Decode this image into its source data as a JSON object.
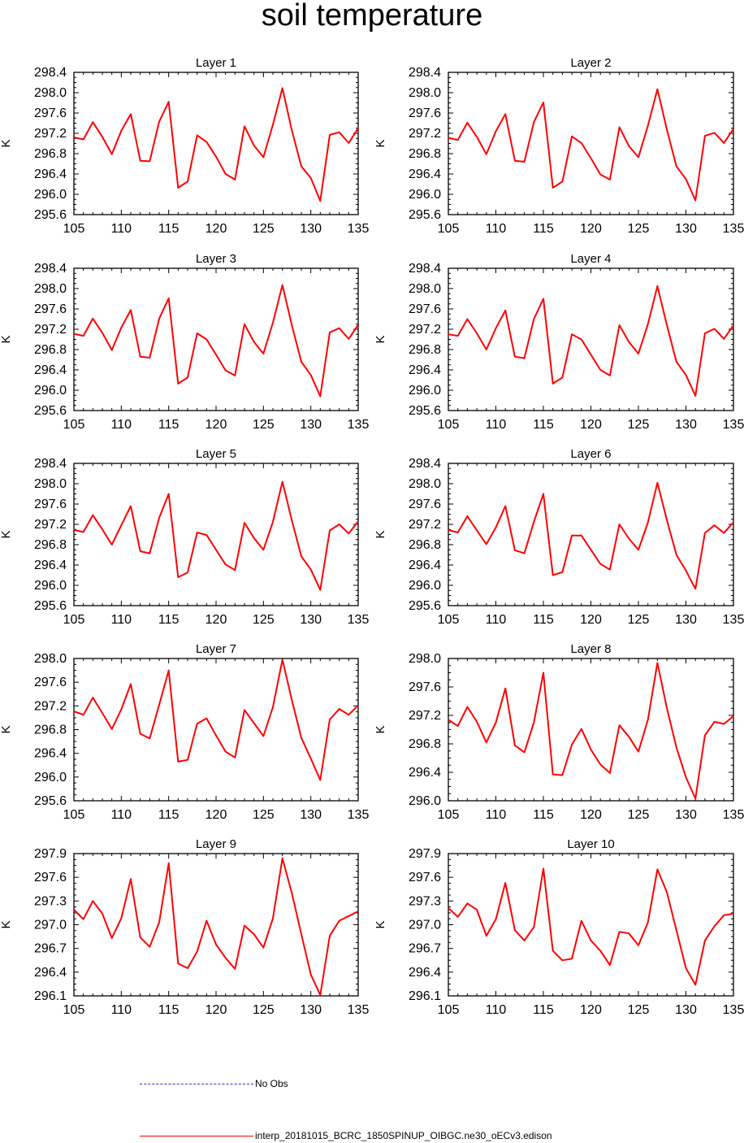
{
  "title": "soil temperature",
  "colors": {
    "model": "#ff0000",
    "obs": "#2a2ad8",
    "axis": "#000000"
  },
  "legend": [
    {
      "label": "No Obs",
      "color": "#2a2ad8",
      "style": "dashed"
    },
    {
      "label": "interp_20181015_BCRC_1850SPINUP_OIBGC.ne30_oECv3.edison",
      "color": "#ff0000",
      "style": "solid"
    }
  ],
  "chart_data": [
    {
      "type": "line",
      "title": "Layer 1",
      "ylabel": "K",
      "xlim": [
        105,
        135
      ],
      "ylim": [
        295.6,
        298.4
      ],
      "xticks": [
        105,
        110,
        115,
        120,
        125,
        130,
        135
      ],
      "yticks": [
        "295.6",
        "296.0",
        "296.4",
        "296.8",
        "297.2",
        "297.6",
        "298.0",
        "298.4"
      ],
      "x": [
        105,
        106,
        107,
        108,
        109,
        110,
        111,
        112,
        113,
        114,
        115,
        116,
        117,
        118,
        119,
        120,
        121,
        122,
        123,
        124,
        125,
        126,
        127,
        128,
        129,
        130,
        131,
        132,
        133,
        134,
        135
      ],
      "series": [
        {
          "values": [
            297.12,
            297.08,
            297.42,
            297.13,
            296.79,
            297.25,
            297.58,
            296.66,
            296.65,
            297.43,
            297.82,
            296.13,
            296.25,
            297.16,
            297.03,
            296.74,
            296.4,
            296.29,
            297.34,
            296.96,
            296.73,
            297.37,
            298.09,
            297.26,
            296.55,
            296.32,
            295.87,
            297.17,
            297.22,
            297.01,
            297.3
          ]
        }
      ]
    },
    {
      "type": "line",
      "title": "Layer 2",
      "ylabel": "K",
      "xlim": [
        105,
        135
      ],
      "ylim": [
        295.6,
        298.4
      ],
      "xticks": [
        105,
        110,
        115,
        120,
        125,
        130,
        135
      ],
      "yticks": [
        "295.6",
        "296.0",
        "296.4",
        "296.8",
        "297.2",
        "297.6",
        "298.0",
        "298.4"
      ],
      "x": [
        105,
        106,
        107,
        108,
        109,
        110,
        111,
        112,
        113,
        114,
        115,
        116,
        117,
        118,
        119,
        120,
        121,
        122,
        123,
        124,
        125,
        126,
        127,
        128,
        129,
        130,
        131,
        132,
        133,
        134,
        135
      ],
      "series": [
        {
          "values": [
            297.11,
            297.07,
            297.41,
            297.13,
            296.79,
            297.24,
            297.58,
            296.66,
            296.64,
            297.42,
            297.81,
            296.13,
            296.25,
            297.14,
            297.01,
            296.71,
            296.39,
            296.29,
            297.32,
            296.95,
            296.73,
            297.35,
            298.07,
            297.27,
            296.55,
            296.3,
            295.88,
            297.15,
            297.21,
            297.01,
            297.29
          ]
        }
      ]
    },
    {
      "type": "line",
      "title": "Layer 3",
      "ylabel": "K",
      "xlim": [
        105,
        135
      ],
      "ylim": [
        295.6,
        298.4
      ],
      "xticks": [
        105,
        110,
        115,
        120,
        125,
        130,
        135
      ],
      "yticks": [
        "295.6",
        "296.0",
        "296.4",
        "296.8",
        "297.2",
        "297.6",
        "298.0",
        "298.4"
      ],
      "x": [
        105,
        106,
        107,
        108,
        109,
        110,
        111,
        112,
        113,
        114,
        115,
        116,
        117,
        118,
        119,
        120,
        121,
        122,
        123,
        124,
        125,
        126,
        127,
        128,
        129,
        130,
        131,
        132,
        133,
        134,
        135
      ],
      "series": [
        {
          "values": [
            297.11,
            297.07,
            297.41,
            297.13,
            296.79,
            297.23,
            297.58,
            296.66,
            296.64,
            297.41,
            297.81,
            296.13,
            296.25,
            297.12,
            297.0,
            296.7,
            296.39,
            296.29,
            297.3,
            296.95,
            296.72,
            297.33,
            298.07,
            297.28,
            296.56,
            296.3,
            295.88,
            297.14,
            297.22,
            297.01,
            297.29
          ]
        }
      ]
    },
    {
      "type": "line",
      "title": "Layer 4",
      "ylabel": "K",
      "xlim": [
        105,
        135
      ],
      "ylim": [
        295.6,
        298.4
      ],
      "xticks": [
        105,
        110,
        115,
        120,
        125,
        130,
        135
      ],
      "yticks": [
        "295.6",
        "296.0",
        "296.4",
        "296.8",
        "297.2",
        "297.6",
        "298.0",
        "298.4"
      ],
      "x": [
        105,
        106,
        107,
        108,
        109,
        110,
        111,
        112,
        113,
        114,
        115,
        116,
        117,
        118,
        119,
        120,
        121,
        122,
        123,
        124,
        125,
        126,
        127,
        128,
        129,
        130,
        131,
        132,
        133,
        134,
        135
      ],
      "series": [
        {
          "values": [
            297.1,
            297.07,
            297.4,
            297.12,
            296.8,
            297.22,
            297.57,
            296.66,
            296.63,
            297.4,
            297.8,
            296.13,
            296.25,
            297.1,
            297.0,
            296.7,
            296.4,
            296.29,
            297.28,
            296.95,
            296.72,
            297.3,
            298.05,
            297.28,
            296.56,
            296.3,
            295.89,
            297.12,
            297.21,
            297.01,
            297.28
          ]
        }
      ]
    },
    {
      "type": "line",
      "title": "Layer 5",
      "ylabel": "K",
      "xlim": [
        105,
        135
      ],
      "ylim": [
        295.6,
        298.4
      ],
      "xticks": [
        105,
        110,
        115,
        120,
        125,
        130,
        135
      ],
      "yticks": [
        "295.6",
        "296.0",
        "296.4",
        "296.8",
        "297.2",
        "297.6",
        "298.0",
        "298.4"
      ],
      "x": [
        105,
        106,
        107,
        108,
        109,
        110,
        111,
        112,
        113,
        114,
        115,
        116,
        117,
        118,
        119,
        120,
        121,
        122,
        123,
        124,
        125,
        126,
        127,
        128,
        129,
        130,
        131,
        132,
        133,
        134,
        135
      ],
      "series": [
        {
          "values": [
            297.09,
            297.05,
            297.38,
            297.1,
            296.8,
            297.18,
            297.56,
            296.67,
            296.63,
            297.33,
            297.8,
            296.16,
            296.25,
            297.04,
            296.99,
            296.7,
            296.41,
            296.3,
            297.23,
            296.93,
            296.7,
            297.25,
            298.04,
            297.28,
            296.57,
            296.31,
            295.91,
            297.08,
            297.2,
            297.02,
            297.26
          ]
        }
      ]
    },
    {
      "type": "line",
      "title": "Layer 6",
      "ylabel": "K",
      "xlim": [
        105,
        135
      ],
      "ylim": [
        295.6,
        298.4
      ],
      "xticks": [
        105,
        110,
        115,
        120,
        125,
        130,
        135
      ],
      "yticks": [
        "295.6",
        "296.0",
        "296.4",
        "296.8",
        "297.2",
        "297.6",
        "298.0",
        "298.4"
      ],
      "x": [
        105,
        106,
        107,
        108,
        109,
        110,
        111,
        112,
        113,
        114,
        115,
        116,
        117,
        118,
        119,
        120,
        121,
        122,
        123,
        124,
        125,
        126,
        127,
        128,
        129,
        130,
        131,
        132,
        133,
        134,
        135
      ],
      "series": [
        {
          "values": [
            297.09,
            297.04,
            297.36,
            297.08,
            296.81,
            297.14,
            297.56,
            296.69,
            296.63,
            297.25,
            297.8,
            296.2,
            296.26,
            296.98,
            296.98,
            296.7,
            296.42,
            296.31,
            297.2,
            296.92,
            296.7,
            297.24,
            298.02,
            297.28,
            296.6,
            296.29,
            295.93,
            297.03,
            297.18,
            297.03,
            297.24
          ]
        }
      ]
    },
    {
      "type": "line",
      "title": "Layer 7",
      "ylabel": "K",
      "xlim": [
        105,
        135
      ],
      "ylim": [
        295.6,
        298.0
      ],
      "xticks": [
        105,
        110,
        115,
        120,
        125,
        130,
        135
      ],
      "yticks": [
        "295.6",
        "296.0",
        "296.4",
        "296.8",
        "297.2",
        "297.6",
        "298.0"
      ],
      "x": [
        105,
        106,
        107,
        108,
        109,
        110,
        111,
        112,
        113,
        114,
        115,
        116,
        117,
        118,
        119,
        120,
        121,
        122,
        123,
        124,
        125,
        126,
        127,
        128,
        129,
        130,
        131,
        132,
        133,
        134,
        135
      ],
      "series": [
        {
          "values": [
            297.11,
            297.05,
            297.34,
            297.08,
            296.81,
            297.14,
            297.57,
            296.73,
            296.65,
            297.22,
            297.8,
            296.26,
            296.29,
            296.9,
            296.99,
            296.7,
            296.43,
            296.33,
            297.13,
            296.91,
            296.69,
            297.18,
            297.98,
            297.3,
            296.66,
            296.31,
            295.95,
            296.97,
            297.15,
            297.05,
            297.21
          ]
        }
      ]
    },
    {
      "type": "line",
      "title": "Layer 8",
      "ylabel": "K",
      "xlim": [
        105,
        135
      ],
      "ylim": [
        296.0,
        298.0
      ],
      "xticks": [
        105,
        110,
        115,
        120,
        125,
        130,
        135
      ],
      "yticks": [
        "296.0",
        "296.4",
        "296.8",
        "297.2",
        "297.6",
        "298.0"
      ],
      "x": [
        105,
        106,
        107,
        108,
        109,
        110,
        111,
        112,
        113,
        114,
        115,
        116,
        117,
        118,
        119,
        120,
        121,
        122,
        123,
        124,
        125,
        126,
        127,
        128,
        129,
        130,
        131,
        132,
        133,
        134,
        135
      ],
      "series": [
        {
          "values": [
            297.14,
            297.05,
            297.32,
            297.11,
            296.82,
            297.1,
            297.58,
            296.78,
            296.68,
            297.1,
            297.8,
            296.37,
            296.36,
            296.79,
            297.01,
            296.72,
            296.51,
            296.39,
            297.06,
            296.9,
            296.69,
            297.14,
            297.94,
            297.3,
            296.75,
            296.33,
            296.03,
            296.92,
            297.11,
            297.08,
            297.19
          ]
        }
      ]
    },
    {
      "type": "line",
      "title": "Layer 9",
      "ylabel": "K",
      "xlim": [
        105,
        135
      ],
      "ylim": [
        296.1,
        297.9
      ],
      "xticks": [
        105,
        110,
        115,
        120,
        125,
        130,
        135
      ],
      "yticks": [
        "296.1",
        "296.4",
        "296.7",
        "297.0",
        "297.3",
        "297.6",
        "297.9"
      ],
      "x": [
        105,
        106,
        107,
        108,
        109,
        110,
        111,
        112,
        113,
        114,
        115,
        116,
        117,
        118,
        119,
        120,
        121,
        122,
        123,
        124,
        125,
        126,
        127,
        128,
        129,
        130,
        131,
        132,
        133,
        134,
        135
      ],
      "series": [
        {
          "values": [
            297.19,
            297.07,
            297.3,
            297.14,
            296.83,
            297.08,
            297.58,
            296.84,
            296.72,
            297.03,
            297.78,
            296.51,
            296.45,
            296.66,
            297.05,
            296.75,
            296.58,
            296.44,
            296.99,
            296.88,
            296.71,
            297.08,
            297.84,
            297.4,
            296.88,
            296.37,
            296.11,
            296.86,
            297.05,
            297.11,
            297.17
          ]
        }
      ]
    },
    {
      "type": "line",
      "title": "Layer 10",
      "ylabel": "K",
      "xlim": [
        105,
        135
      ],
      "ylim": [
        296.1,
        297.9
      ],
      "xticks": [
        105,
        110,
        115,
        120,
        125,
        130,
        135
      ],
      "yticks": [
        "296.1",
        "296.4",
        "296.7",
        "297.0",
        "297.3",
        "297.6",
        "297.9"
      ],
      "x": [
        105,
        106,
        107,
        108,
        109,
        110,
        111,
        112,
        113,
        114,
        115,
        116,
        117,
        118,
        119,
        120,
        121,
        122,
        123,
        124,
        125,
        126,
        127,
        128,
        129,
        130,
        131,
        132,
        133,
        134,
        135
      ],
      "series": [
        {
          "values": [
            297.21,
            297.1,
            297.27,
            297.19,
            296.86,
            297.07,
            297.53,
            296.93,
            296.8,
            296.97,
            297.71,
            296.67,
            296.55,
            296.57,
            297.05,
            296.8,
            296.67,
            296.49,
            296.91,
            296.89,
            296.74,
            297.03,
            297.7,
            297.41,
            296.93,
            296.45,
            296.24,
            296.8,
            296.98,
            297.12,
            297.14
          ]
        }
      ]
    }
  ]
}
